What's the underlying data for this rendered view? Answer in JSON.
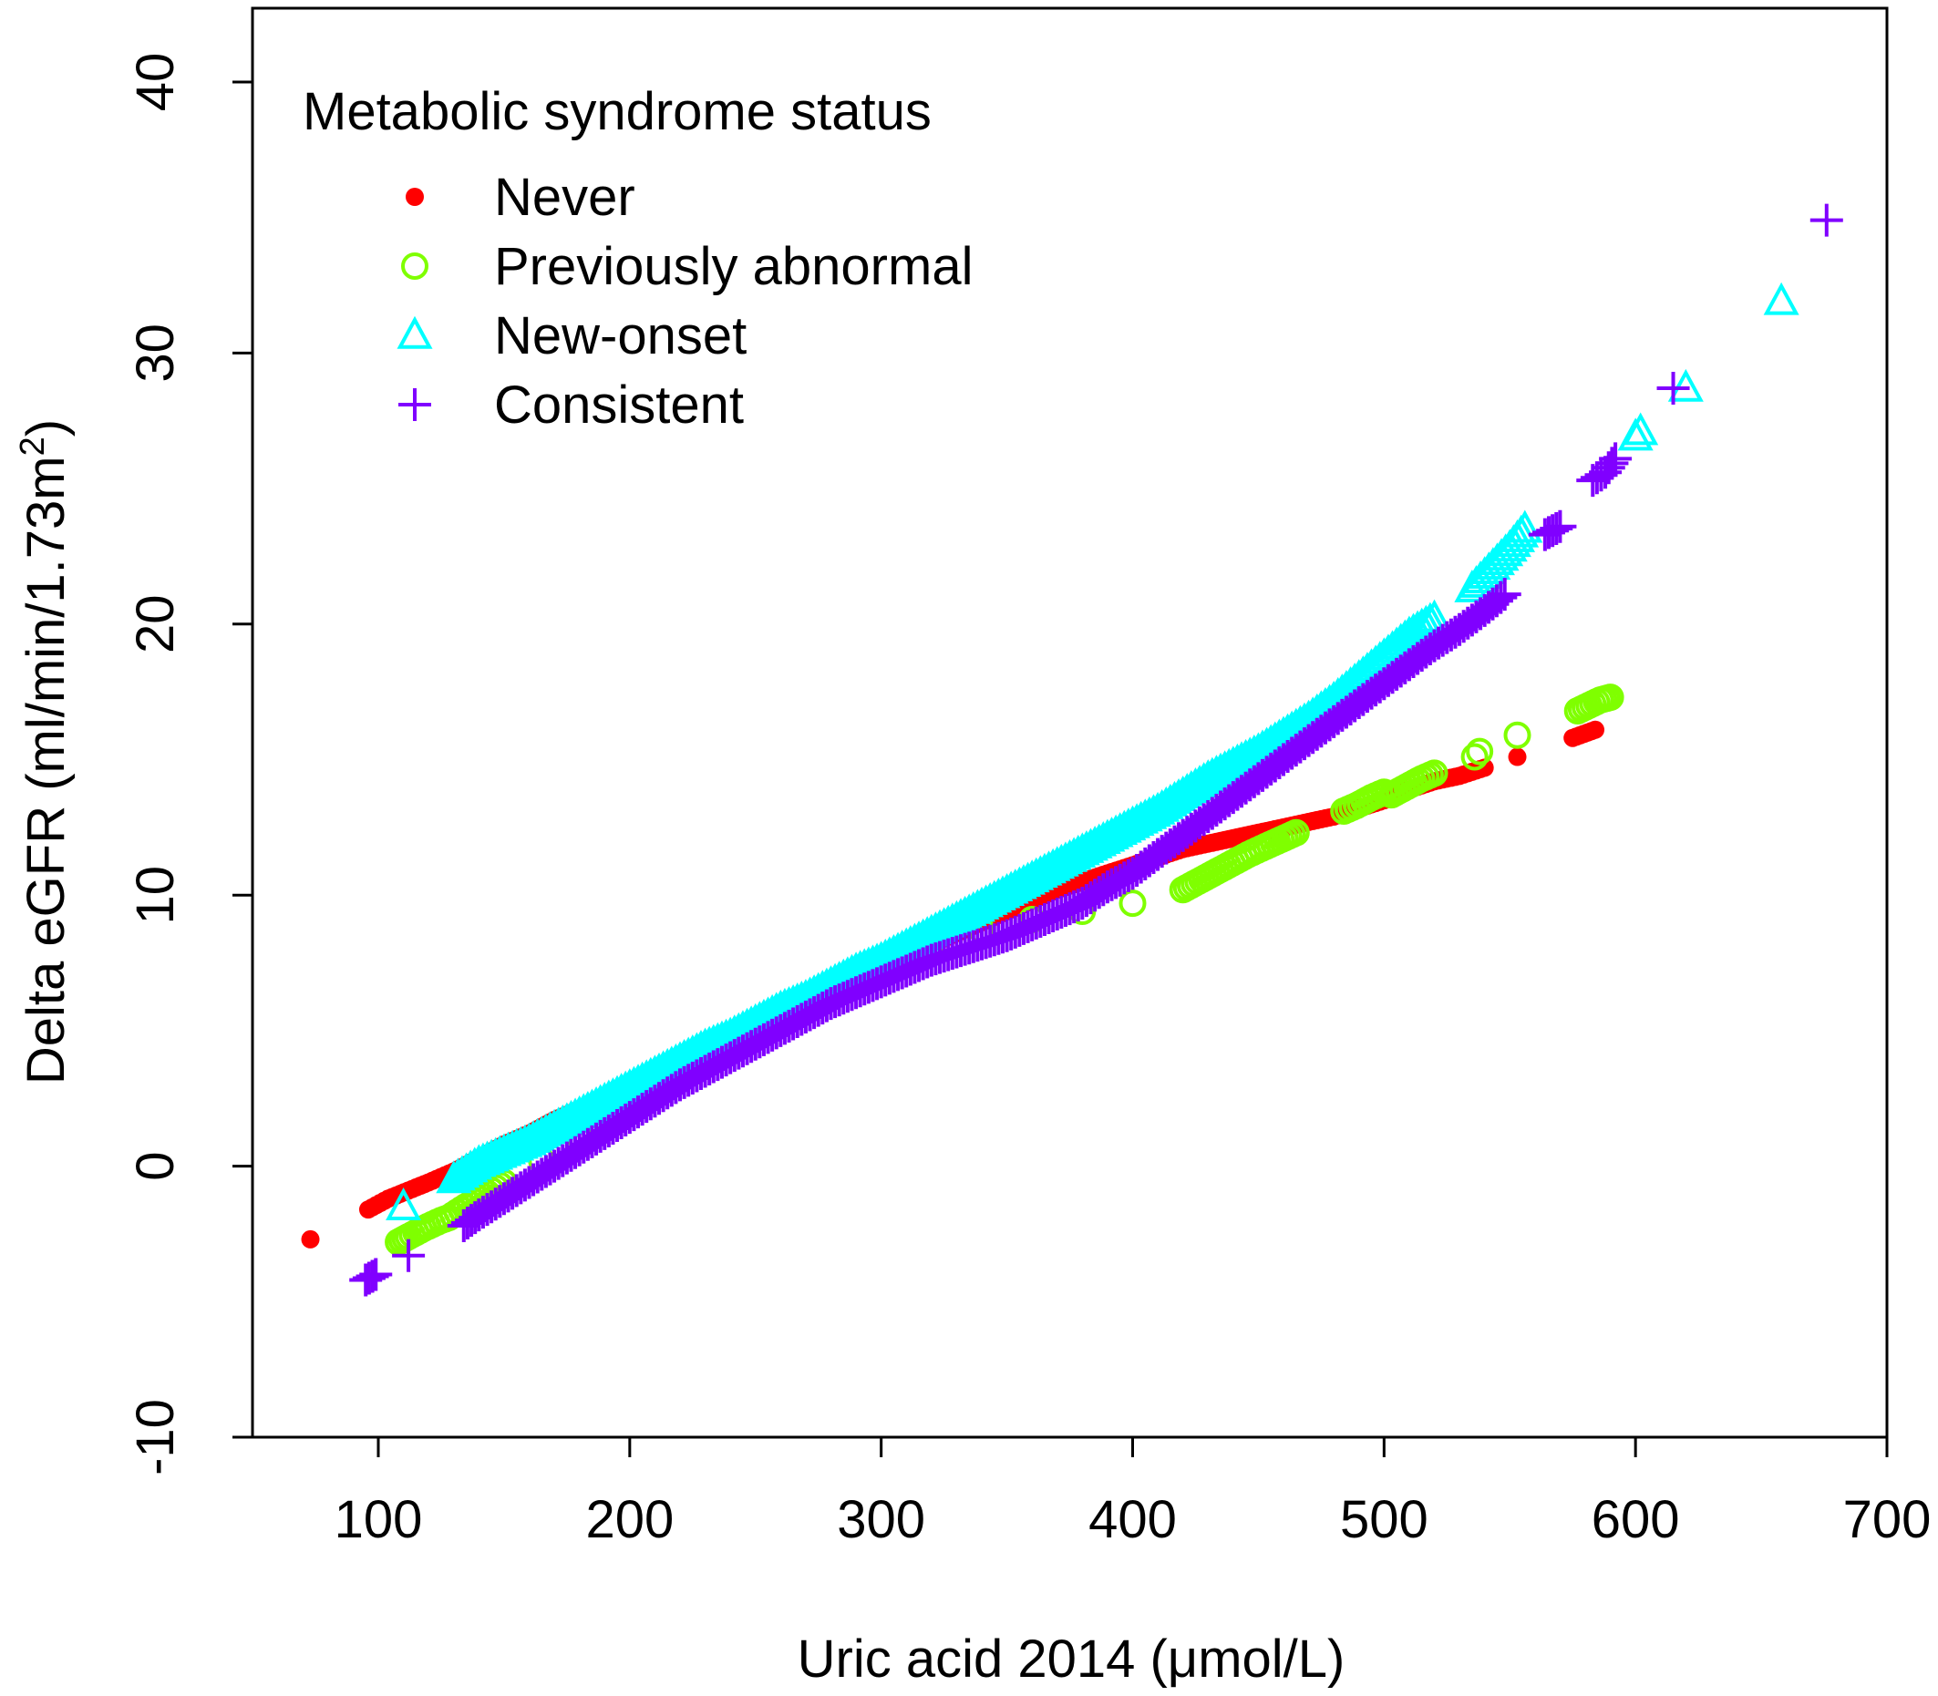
{
  "chart_data": {
    "type": "scatter",
    "title": "",
    "xlabel": "Uric acid 2014 (μmol/L)",
    "ylabel_main": "Delta eGFR (ml/min/1.73m",
    "ylabel_sup": "2",
    "ylabel_close": ")",
    "xlim": [
      50,
      700
    ],
    "ylim": [
      -10,
      40
    ],
    "xticks": [
      100,
      200,
      300,
      400,
      500,
      600,
      700
    ],
    "yticks": [
      -10,
      0,
      10,
      20,
      30,
      40
    ],
    "xtick_labels": [
      "100",
      "200",
      "300",
      "400",
      "500",
      "600",
      "700"
    ],
    "ytick_labels": [
      "-10",
      "0",
      "10",
      "20",
      "30",
      "40"
    ],
    "legend": {
      "title": "Metabolic syndrome status",
      "position": "top-left",
      "entries": [
        "Never",
        "Previously abnormal",
        "New-onset",
        "Consistent"
      ]
    },
    "series": [
      {
        "name": "Never",
        "color": "#ff0000",
        "marker": "filled-circle",
        "points": [
          [
            73,
            -2.7
          ],
          [
            96,
            -1.6
          ],
          [
            104,
            -1.2
          ],
          [
            112,
            -0.9
          ],
          [
            120,
            -0.6
          ],
          [
            130,
            -0.2
          ],
          [
            140,
            0.3
          ],
          [
            150,
            0.8
          ],
          [
            160,
            1.2
          ],
          [
            170,
            1.7
          ],
          [
            180,
            2.1
          ],
          [
            190,
            2.6
          ],
          [
            200,
            3.0
          ],
          [
            210,
            3.5
          ],
          [
            220,
            3.9
          ],
          [
            230,
            4.4
          ],
          [
            240,
            4.8
          ],
          [
            250,
            5.3
          ],
          [
            260,
            5.7
          ],
          [
            270,
            6.2
          ],
          [
            280,
            6.6
          ],
          [
            290,
            7.0
          ],
          [
            300,
            7.4
          ],
          [
            310,
            7.8
          ],
          [
            320,
            8.2
          ],
          [
            330,
            8.6
          ],
          [
            340,
            9.0
          ],
          [
            350,
            9.4
          ],
          [
            360,
            9.8
          ],
          [
            370,
            10.2
          ],
          [
            380,
            10.5
          ],
          [
            390,
            10.8
          ],
          [
            400,
            11.1
          ],
          [
            410,
            11.4
          ],
          [
            420,
            11.7
          ],
          [
            430,
            11.9
          ],
          [
            440,
            12.1
          ],
          [
            450,
            12.3
          ],
          [
            460,
            12.5
          ],
          [
            470,
            12.7
          ],
          [
            480,
            12.9
          ],
          [
            490,
            13.2
          ],
          [
            500,
            13.5
          ],
          [
            510,
            13.9
          ],
          [
            520,
            14.2
          ],
          [
            530,
            14.4
          ],
          [
            540,
            14.7
          ],
          [
            553,
            15.1
          ],
          [
            575,
            15.8
          ],
          [
            584,
            16.1
          ]
        ]
      },
      {
        "name": "Previously abnormal",
        "color": "#7fff00",
        "marker": "open-circle",
        "points": [
          [
            108,
            -2.8
          ],
          [
            112,
            -2.6
          ],
          [
            118,
            -2.3
          ],
          [
            125,
            -2.0
          ],
          [
            128,
            -1.9
          ],
          [
            133,
            -1.6
          ],
          [
            140,
            -1.2
          ],
          [
            150,
            -0.6
          ],
          [
            165,
            0.2
          ],
          [
            180,
            1.1
          ],
          [
            200,
            2.3
          ],
          [
            220,
            3.4
          ],
          [
            240,
            4.4
          ],
          [
            260,
            5.4
          ],
          [
            280,
            6.3
          ],
          [
            300,
            7.2
          ],
          [
            320,
            8.0
          ],
          [
            340,
            8.7
          ],
          [
            360,
            9.1
          ],
          [
            380,
            9.4
          ],
          [
            400,
            9.7
          ],
          [
            420,
            10.2
          ],
          [
            432,
            10.8
          ],
          [
            438,
            11.1
          ],
          [
            446,
            11.5
          ],
          [
            453,
            11.8
          ],
          [
            465,
            12.3
          ],
          [
            484,
            13.1
          ],
          [
            489,
            13.3
          ],
          [
            495,
            13.6
          ],
          [
            500,
            13.8
          ],
          [
            503,
            13.7
          ],
          [
            515,
            14.3
          ],
          [
            520,
            14.5
          ],
          [
            536,
            15.1
          ],
          [
            538,
            15.3
          ],
          [
            553,
            15.9
          ],
          [
            577,
            16.8
          ],
          [
            586,
            17.2
          ],
          [
            590,
            17.3
          ]
        ]
      },
      {
        "name": "New-onset",
        "color": "#00ffff",
        "marker": "open-triangle",
        "points": [
          [
            110,
            -1.5
          ],
          [
            130,
            -0.5
          ],
          [
            135,
            -0.2
          ],
          [
            140,
            0.1
          ],
          [
            145,
            0.3
          ],
          [
            150,
            0.5
          ],
          [
            160,
            0.9
          ],
          [
            170,
            1.4
          ],
          [
            180,
            1.9
          ],
          [
            190,
            2.4
          ],
          [
            200,
            2.9
          ],
          [
            210,
            3.4
          ],
          [
            220,
            3.9
          ],
          [
            230,
            4.4
          ],
          [
            240,
            4.8
          ],
          [
            250,
            5.3
          ],
          [
            260,
            5.8
          ],
          [
            270,
            6.2
          ],
          [
            280,
            6.7
          ],
          [
            290,
            7.2
          ],
          [
            300,
            7.6
          ],
          [
            310,
            8.1
          ],
          [
            320,
            8.6
          ],
          [
            330,
            9.1
          ],
          [
            340,
            9.6
          ],
          [
            350,
            10.1
          ],
          [
            360,
            10.6
          ],
          [
            370,
            11.1
          ],
          [
            380,
            11.6
          ],
          [
            390,
            12.1
          ],
          [
            400,
            12.6
          ],
          [
            410,
            13.1
          ],
          [
            420,
            13.7
          ],
          [
            430,
            14.3
          ],
          [
            440,
            14.8
          ],
          [
            450,
            15.3
          ],
          [
            460,
            15.9
          ],
          [
            470,
            16.5
          ],
          [
            480,
            17.2
          ],
          [
            490,
            18.0
          ],
          [
            500,
            18.8
          ],
          [
            510,
            19.6
          ],
          [
            520,
            20.2
          ],
          [
            535,
            21.3
          ],
          [
            545,
            22.3
          ],
          [
            550,
            22.8
          ],
          [
            556,
            23.5
          ],
          [
            600,
            26.9
          ],
          [
            602,
            27.1
          ],
          [
            620,
            28.7
          ],
          [
            658,
            31.9
          ]
        ]
      },
      {
        "name": "Consistent",
        "color": "#8000ff",
        "marker": "plus",
        "points": [
          [
            95,
            -4.2
          ],
          [
            99,
            -4.0
          ],
          [
            112,
            -3.3
          ],
          [
            134,
            -2.2
          ],
          [
            140,
            -1.8
          ],
          [
            150,
            -1.2
          ],
          [
            160,
            -0.6
          ],
          [
            170,
            0.0
          ],
          [
            180,
            0.6
          ],
          [
            190,
            1.2
          ],
          [
            200,
            1.8
          ],
          [
            210,
            2.4
          ],
          [
            220,
            3.0
          ],
          [
            230,
            3.5
          ],
          [
            240,
            4.0
          ],
          [
            250,
            4.5
          ],
          [
            260,
            5.0
          ],
          [
            270,
            5.5
          ],
          [
            280,
            6.0
          ],
          [
            290,
            6.4
          ],
          [
            300,
            6.8
          ],
          [
            310,
            7.2
          ],
          [
            320,
            7.6
          ],
          [
            330,
            7.9
          ],
          [
            340,
            8.2
          ],
          [
            350,
            8.5
          ],
          [
            360,
            8.9
          ],
          [
            370,
            9.3
          ],
          [
            380,
            9.7
          ],
          [
            390,
            10.3
          ],
          [
            400,
            10.8
          ],
          [
            410,
            11.5
          ],
          [
            420,
            12.2
          ],
          [
            430,
            12.9
          ],
          [
            440,
            13.6
          ],
          [
            450,
            14.3
          ],
          [
            460,
            15.0
          ],
          [
            470,
            15.7
          ],
          [
            480,
            16.4
          ],
          [
            490,
            17.1
          ],
          [
            500,
            17.8
          ],
          [
            510,
            18.5
          ],
          [
            520,
            19.2
          ],
          [
            530,
            19.8
          ],
          [
            540,
            20.5
          ],
          [
            548,
            21.1
          ],
          [
            564,
            23.3
          ],
          [
            570,
            23.6
          ],
          [
            583,
            25.3
          ],
          [
            588,
            25.6
          ],
          [
            592,
            26.1
          ],
          [
            615,
            28.7
          ],
          [
            676,
            34.9
          ]
        ]
      }
    ]
  }
}
